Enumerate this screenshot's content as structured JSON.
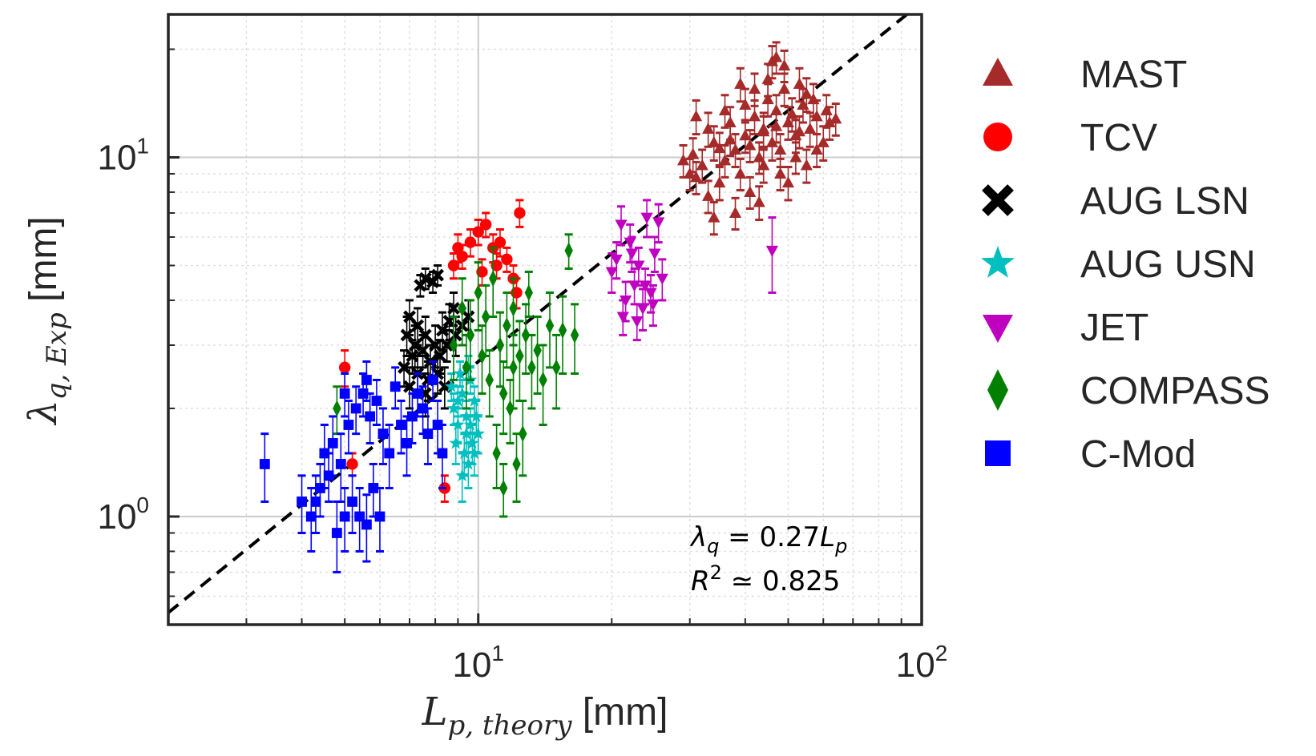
{
  "chart_data": {
    "type": "scatter",
    "xscale": "log",
    "yscale": "log",
    "xlim": [
      2.0,
      100
    ],
    "ylim": [
      0.5,
      25
    ],
    "grid": true,
    "legend_position": "right",
    "xlabel": {
      "main": "L",
      "sub": "p, theory",
      "unit": " [mm]"
    },
    "ylabel": {
      "main": "λ",
      "sub": "q, Exp",
      "unit": " [mm]"
    },
    "x_ticks": [
      {
        "value": 10,
        "base": "10",
        "exp": "1"
      },
      {
        "value": 100,
        "base": "10",
        "exp": "2"
      }
    ],
    "y_ticks": [
      {
        "value": 1,
        "base": "10",
        "exp": "0"
      },
      {
        "value": 10,
        "base": "10",
        "exp": "1"
      }
    ],
    "fit_line": {
      "slope": 0.27,
      "style": "dashed",
      "color": "#000000"
    },
    "annotation": {
      "line1": {
        "lhs": "λ",
        "lhs_sub": "q",
        "eq": " = 0.27",
        "rhs": "L",
        "rhs_sub": "p"
      },
      "line2": {
        "lhs": "R",
        "lhs_sup": "2",
        "eq": " ≃ 0.825"
      }
    },
    "series": [
      {
        "name": "MAST",
        "marker": "triangle-up",
        "color": "#a52a2a",
        "points": [
          [
            30.5,
            10.2,
            1.1
          ],
          [
            32,
            9.5,
            1.0
          ],
          [
            34,
            11.0,
            1.2
          ],
          [
            36,
            9.8,
            1.0
          ],
          [
            37,
            12.5,
            1.3
          ],
          [
            38,
            10.5,
            1.1
          ],
          [
            40,
            11.5,
            1.2
          ],
          [
            42,
            13.0,
            1.4
          ],
          [
            43,
            10.0,
            1.0
          ],
          [
            44,
            12.0,
            1.3
          ],
          [
            45,
            14.5,
            1.5
          ],
          [
            46,
            11.0,
            1.2
          ],
          [
            47,
            13.5,
            1.4
          ],
          [
            48,
            10.5,
            1.1
          ],
          [
            49,
            15.5,
            1.6
          ],
          [
            50,
            12.5,
            1.3
          ],
          [
            52,
            11.5,
            1.2
          ],
          [
            54,
            14.0,
            1.5
          ],
          [
            56,
            12.0,
            1.3
          ],
          [
            58,
            13.0,
            1.4
          ],
          [
            60,
            11.0,
            1.2
          ],
          [
            62,
            12.5,
            1.3
          ],
          [
            35,
            8.5,
            0.9
          ],
          [
            39,
            9.0,
            0.9
          ],
          [
            41,
            8.0,
            0.8
          ],
          [
            44,
            9.5,
            1.0
          ],
          [
            33,
            7.8,
            0.8
          ],
          [
            31,
            8.8,
            0.9
          ],
          [
            29,
            9.8,
            1.0
          ],
          [
            36,
            13.5,
            1.4
          ],
          [
            40,
            14.0,
            1.5
          ],
          [
            46,
            18.5,
            1.9
          ],
          [
            47,
            19.0,
            1.9
          ],
          [
            49,
            18.0,
            1.8
          ],
          [
            53,
            16.0,
            1.7
          ],
          [
            55,
            15.0,
            1.6
          ],
          [
            57,
            14.5,
            1.5
          ],
          [
            45,
            16.5,
            1.7
          ],
          [
            42,
            15.5,
            1.6
          ],
          [
            39,
            16.0,
            1.7
          ],
          [
            33,
            12.0,
            1.3
          ],
          [
            31,
            13.0,
            1.4
          ],
          [
            38,
            7.0,
            0.7
          ],
          [
            43,
            7.5,
            0.8
          ],
          [
            34,
            6.8,
            0.7
          ],
          [
            48,
            9.0,
            0.9
          ],
          [
            50,
            8.5,
            0.9
          ],
          [
            52,
            10.0,
            1.0
          ],
          [
            55,
            9.5,
            1.0
          ],
          [
            58,
            10.5,
            1.1
          ],
          [
            61,
            13.5,
            1.4
          ],
          [
            64,
            12.8,
            1.3
          ],
          [
            37,
            11.2,
            1.1
          ],
          [
            41,
            10.8,
            1.1
          ],
          [
            35,
            10.6,
            1.1
          ],
          [
            30,
            9.0,
            0.9
          ],
          [
            44,
            11.8,
            1.2
          ],
          [
            47,
            12.2,
            1.2
          ],
          [
            51,
            13.2,
            1.4
          ],
          [
            53,
            11.8,
            1.2
          ]
        ]
      },
      {
        "name": "TCV",
        "marker": "circle",
        "color": "#ff0000",
        "points": [
          [
            8.8,
            5.0,
            0.4
          ],
          [
            9.2,
            5.3,
            0.4
          ],
          [
            9.6,
            5.8,
            0.5
          ],
          [
            10.0,
            6.2,
            0.5
          ],
          [
            10.4,
            6.5,
            0.5
          ],
          [
            10.8,
            5.6,
            0.5
          ],
          [
            11.2,
            5.8,
            0.5
          ],
          [
            11.6,
            5.2,
            0.4
          ],
          [
            12.0,
            4.6,
            0.4
          ],
          [
            12.4,
            7.0,
            0.6
          ],
          [
            9.0,
            5.6,
            0.5
          ],
          [
            11.0,
            5.0,
            0.4
          ],
          [
            12.2,
            4.2,
            0.4
          ],
          [
            10.2,
            4.8,
            0.4
          ],
          [
            5.0,
            2.6,
            0.3
          ],
          [
            8.4,
            1.2,
            0.1
          ],
          [
            5.2,
            1.4,
            0.1
          ]
        ]
      },
      {
        "name": "AUG LSN",
        "marker": "x",
        "color": "#000000",
        "points": [
          [
            7.0,
            3.6,
            0.4
          ],
          [
            7.3,
            3.4,
            0.4
          ],
          [
            7.6,
            4.6,
            0.3
          ],
          [
            7.9,
            4.5,
            0.3
          ],
          [
            8.1,
            4.7,
            0.3
          ],
          [
            7.4,
            4.4,
            0.3
          ],
          [
            6.9,
            3.2,
            0.4
          ],
          [
            7.2,
            3.0,
            0.4
          ],
          [
            7.6,
            3.2,
            0.4
          ],
          [
            8.0,
            3.0,
            0.4
          ],
          [
            8.3,
            3.3,
            0.4
          ],
          [
            8.6,
            3.5,
            0.4
          ],
          [
            8.9,
            3.2,
            0.4
          ],
          [
            9.2,
            3.4,
            0.4
          ],
          [
            7.1,
            2.8,
            0.3
          ],
          [
            7.5,
            2.9,
            0.3
          ],
          [
            7.8,
            2.7,
            0.3
          ],
          [
            8.2,
            2.8,
            0.3
          ],
          [
            8.5,
            3.0,
            0.3
          ],
          [
            6.8,
            2.6,
            0.3
          ],
          [
            7.3,
            2.5,
            0.3
          ],
          [
            7.7,
            2.4,
            0.3
          ],
          [
            8.1,
            2.5,
            0.3
          ],
          [
            9.5,
            3.6,
            0.4
          ],
          [
            8.8,
            3.8,
            0.4
          ],
          [
            7.0,
            2.3,
            0.3
          ],
          [
            7.6,
            2.2,
            0.3
          ],
          [
            8.4,
            2.3,
            0.3
          ]
        ]
      },
      {
        "name": "AUG USN",
        "marker": "star",
        "color": "#00bfbf",
        "points": [
          [
            8.8,
            2.0,
            0.2
          ],
          [
            9.0,
            1.8,
            0.2
          ],
          [
            9.2,
            2.2,
            0.2
          ],
          [
            9.4,
            1.9,
            0.2
          ],
          [
            9.6,
            2.4,
            0.2
          ],
          [
            9.8,
            2.1,
            0.2
          ],
          [
            10.0,
            1.7,
            0.2
          ],
          [
            8.9,
            1.6,
            0.2
          ],
          [
            9.1,
            2.5,
            0.2
          ],
          [
            9.3,
            1.5,
            0.2
          ],
          [
            9.5,
            1.4,
            0.2
          ],
          [
            9.7,
            1.6,
            0.2
          ],
          [
            9.9,
            1.9,
            0.2
          ],
          [
            8.7,
            2.3,
            0.2
          ],
          [
            9.2,
            1.3,
            0.2
          ],
          [
            9.5,
            2.6,
            0.2
          ],
          [
            9.0,
            2.1,
            0.2
          ],
          [
            9.8,
            1.5,
            0.2
          ],
          [
            9.4,
            1.7,
            0.2
          ],
          [
            9.6,
            1.8,
            0.2
          ]
        ]
      },
      {
        "name": "JET",
        "marker": "triangle-down",
        "color": "#bf00bf",
        "points": [
          [
            20,
            4.8,
            0.6
          ],
          [
            20.5,
            5.2,
            0.6
          ],
          [
            21,
            6.5,
            0.8
          ],
          [
            21.5,
            4.0,
            0.5
          ],
          [
            22,
            5.8,
            0.7
          ],
          [
            22.5,
            4.4,
            0.5
          ],
          [
            23,
            5.0,
            0.6
          ],
          [
            23.5,
            3.8,
            0.5
          ],
          [
            24,
            6.8,
            0.8
          ],
          [
            24.5,
            4.2,
            0.5
          ],
          [
            25,
            5.4,
            0.6
          ],
          [
            25.5,
            6.6,
            0.8
          ],
          [
            26,
            4.6,
            0.6
          ],
          [
            21.2,
            3.6,
            0.4
          ],
          [
            22.8,
            3.5,
            0.4
          ],
          [
            24.8,
            3.9,
            0.5
          ],
          [
            23.8,
            4.4,
            0.5
          ],
          [
            22.2,
            5.4,
            0.6
          ],
          [
            46,
            5.5,
            1.3
          ]
        ]
      },
      {
        "name": "COMPASS",
        "marker": "diamond",
        "color": "#008000",
        "points": [
          [
            4.8,
            2.0,
            0.3
          ],
          [
            9.2,
            3.8,
            0.8
          ],
          [
            9.6,
            3.2,
            0.8
          ],
          [
            10.0,
            4.2,
            0.9
          ],
          [
            10.4,
            3.6,
            0.8
          ],
          [
            10.8,
            4.6,
            1.0
          ],
          [
            11.2,
            3.0,
            0.7
          ],
          [
            11.6,
            3.4,
            0.8
          ],
          [
            12.0,
            3.8,
            0.8
          ],
          [
            12.4,
            2.8,
            0.7
          ],
          [
            12.8,
            3.2,
            0.7
          ],
          [
            13.2,
            2.6,
            0.6
          ],
          [
            13.6,
            2.9,
            0.7
          ],
          [
            14.0,
            2.4,
            0.6
          ],
          [
            14.5,
            3.4,
            0.8
          ],
          [
            15.0,
            2.6,
            0.6
          ],
          [
            15.5,
            3.3,
            0.8
          ],
          [
            16.0,
            5.5,
            0.6
          ],
          [
            16.5,
            3.2,
            0.7
          ],
          [
            11.0,
            1.5,
            0.3
          ],
          [
            11.4,
            2.2,
            0.5
          ],
          [
            12.2,
            1.4,
            0.3
          ],
          [
            12.6,
            1.7,
            0.4
          ],
          [
            11.8,
            2.0,
            0.4
          ],
          [
            10.6,
            2.4,
            0.5
          ],
          [
            10.2,
            2.8,
            0.6
          ],
          [
            9.4,
            2.6,
            0.6
          ],
          [
            12.0,
            2.6,
            0.6
          ],
          [
            13.0,
            4.2,
            0.6
          ],
          [
            11.4,
            1.2,
            0.2
          ],
          [
            8.8,
            3.0,
            0.6
          ]
        ]
      },
      {
        "name": "C-Mod",
        "marker": "square",
        "color": "#0000ff",
        "points": [
          [
            3.3,
            1.4,
            0.3
          ],
          [
            4.0,
            1.1,
            0.2
          ],
          [
            4.2,
            1.0,
            0.2
          ],
          [
            4.4,
            1.2,
            0.2
          ],
          [
            4.6,
            1.3,
            0.2
          ],
          [
            4.8,
            0.9,
            0.2
          ],
          [
            5.0,
            1.0,
            0.2
          ],
          [
            5.2,
            1.1,
            0.2
          ],
          [
            5.4,
            1.0,
            0.2
          ],
          [
            5.6,
            0.95,
            0.2
          ],
          [
            4.5,
            1.5,
            0.3
          ],
          [
            4.7,
            1.6,
            0.3
          ],
          [
            4.9,
            1.4,
            0.3
          ],
          [
            5.1,
            1.8,
            0.3
          ],
          [
            5.3,
            2.0,
            0.3
          ],
          [
            5.5,
            2.2,
            0.3
          ],
          [
            5.7,
            1.9,
            0.3
          ],
          [
            5.9,
            2.1,
            0.3
          ],
          [
            6.1,
            1.7,
            0.3
          ],
          [
            6.3,
            1.5,
            0.3
          ],
          [
            6.5,
            2.3,
            0.3
          ],
          [
            6.7,
            1.8,
            0.3
          ],
          [
            6.9,
            1.6,
            0.3
          ],
          [
            7.1,
            1.9,
            0.3
          ],
          [
            7.3,
            2.2,
            0.3
          ],
          [
            7.5,
            2.0,
            0.3
          ],
          [
            7.7,
            1.7,
            0.3
          ],
          [
            7.9,
            2.4,
            0.3
          ],
          [
            8.1,
            1.8,
            0.3
          ],
          [
            8.3,
            1.5,
            0.3
          ],
          [
            5.8,
            1.2,
            0.2
          ],
          [
            6.0,
            1.0,
            0.2
          ],
          [
            5.0,
            2.2,
            0.3
          ],
          [
            4.3,
            1.1,
            0.2
          ],
          [
            5.6,
            2.4,
            0.3
          ]
        ]
      }
    ]
  }
}
